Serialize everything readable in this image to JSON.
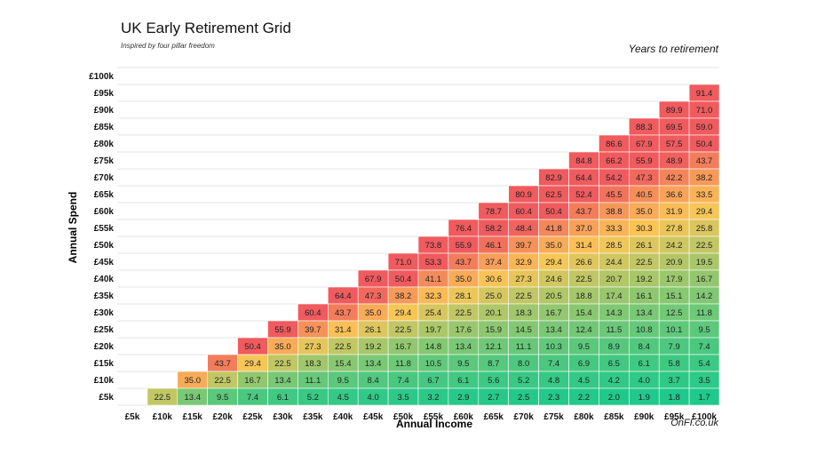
{
  "chart_data": {
    "type": "heatmap",
    "title": "UK Early Retirement Grid",
    "subtitle": "Inspired by four pillar freedom",
    "legend_title": "Years to retirement",
    "credit": "OnFI.co.uk",
    "xlabel": "Annual Income",
    "ylabel": "Annual Spend",
    "x_categories": [
      "£5k",
      "£10k",
      "£15k",
      "£20k",
      "£25k",
      "£30k",
      "£35k",
      "£40k",
      "£45k",
      "£50k",
      "£55k",
      "£60k",
      "£65k",
      "£70k",
      "£75k",
      "£80k",
      "£85k",
      "£90k",
      "£95k",
      "£100k"
    ],
    "y_categories": [
      "£100k",
      "£95k",
      "£90k",
      "£85k",
      "£80k",
      "£75k",
      "£70k",
      "£65k",
      "£60k",
      "£55k",
      "£50k",
      "£45k",
      "£40k",
      "£35k",
      "£30k",
      "£25k",
      "£20k",
      "£15k",
      "£10k",
      "£5k"
    ],
    "rows": [
      {
        "spend": "£100k",
        "values": []
      },
      {
        "spend": "£95k",
        "values": [
          91.4
        ]
      },
      {
        "spend": "£90k",
        "values": [
          89.9,
          71.0
        ]
      },
      {
        "spend": "£85k",
        "values": [
          88.3,
          69.5,
          59.0
        ]
      },
      {
        "spend": "£80k",
        "values": [
          86.6,
          67.9,
          57.5,
          50.4
        ]
      },
      {
        "spend": "£75k",
        "values": [
          84.8,
          66.2,
          55.9,
          48.9,
          43.7
        ]
      },
      {
        "spend": "£70k",
        "values": [
          82.9,
          64.4,
          54.2,
          47.3,
          42.2,
          38.2
        ]
      },
      {
        "spend": "£65k",
        "values": [
          80.9,
          62.5,
          52.4,
          45.5,
          40.5,
          36.6,
          33.5
        ]
      },
      {
        "spend": "£60k",
        "values": [
          78.7,
          60.4,
          50.4,
          43.7,
          38.8,
          35.0,
          31.9,
          29.4
        ]
      },
      {
        "spend": "£55k",
        "values": [
          76.4,
          58.2,
          48.4,
          41.8,
          37.0,
          33.3,
          30.3,
          27.8,
          25.8
        ]
      },
      {
        "spend": "£50k",
        "values": [
          73.8,
          55.9,
          46.1,
          39.7,
          35.0,
          31.4,
          28.5,
          26.1,
          24.2,
          22.5
        ]
      },
      {
        "spend": "£45k",
        "values": [
          71.0,
          53.3,
          43.7,
          37.4,
          32.9,
          29.4,
          26.6,
          24.4,
          22.5,
          20.9,
          19.5
        ]
      },
      {
        "spend": "£40k",
        "values": [
          67.9,
          50.4,
          41.1,
          35.0,
          30.6,
          27.3,
          24.6,
          22.5,
          20.7,
          19.2,
          17.9,
          16.7
        ]
      },
      {
        "spend": "£35k",
        "values": [
          64.4,
          47.3,
          38.2,
          32.3,
          28.1,
          25.0,
          22.5,
          20.5,
          18.8,
          17.4,
          16.1,
          15.1,
          14.2
        ]
      },
      {
        "spend": "£30k",
        "values": [
          60.4,
          43.7,
          35.0,
          29.4,
          25.4,
          22.5,
          20.1,
          18.3,
          16.7,
          15.4,
          14.3,
          13.4,
          12.5,
          11.8
        ]
      },
      {
        "spend": "£25k",
        "values": [
          55.9,
          39.7,
          31.4,
          26.1,
          22.5,
          19.7,
          17.6,
          15.9,
          14.5,
          13.4,
          12.4,
          11.5,
          10.8,
          10.1,
          9.5
        ]
      },
      {
        "spend": "£20k",
        "values": [
          50.4,
          35.0,
          27.3,
          22.5,
          19.2,
          16.7,
          14.8,
          13.4,
          12.1,
          11.1,
          10.3,
          9.5,
          8.9,
          8.4,
          7.9,
          7.4
        ]
      },
      {
        "spend": "£15k",
        "values": [
          43.7,
          29.4,
          22.5,
          18.3,
          15.4,
          13.4,
          11.8,
          10.5,
          9.5,
          8.7,
          8.0,
          7.4,
          6.9,
          6.5,
          6.1,
          5.8,
          5.4
        ]
      },
      {
        "spend": "£10k",
        "values": [
          35.0,
          22.5,
          16.7,
          13.4,
          11.1,
          9.5,
          8.4,
          7.4,
          6.7,
          6.1,
          5.6,
          5.2,
          4.8,
          4.5,
          4.2,
          4.0,
          3.7,
          3.5
        ]
      },
      {
        "spend": "£5k",
        "values": [
          22.5,
          13.4,
          9.5,
          7.4,
          6.1,
          5.2,
          4.5,
          4.0,
          3.5,
          3.2,
          2.9,
          2.7,
          2.5,
          2.3,
          2.2,
          2.0,
          1.9,
          1.8,
          1.7
        ]
      }
    ],
    "colors": {
      "low": "#1ec98b",
      "mid": "#fbc656",
      "high": "#ef5b5e"
    }
  }
}
